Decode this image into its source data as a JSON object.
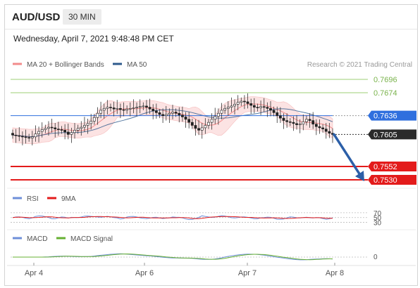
{
  "header": {
    "symbol": "AUD/USD",
    "timeframe": "30 MIN"
  },
  "datetime": "Wednesday, April 7, 2021 9:48:48 PM CET",
  "copyright": "Research © 2021 Trading Central",
  "legend": {
    "price": [
      {
        "label": "MA 20 + Bollinger Bands",
        "color": "#f28b8b"
      },
      {
        "label": "MA 50",
        "color": "#2e5a8c"
      }
    ],
    "rsi": [
      {
        "label": "RSI",
        "color": "#6e8fd9"
      },
      {
        "label": "9MA",
        "color": "#e31b1b"
      }
    ],
    "macd": [
      {
        "label": "MACD",
        "color": "#6e8fd9"
      },
      {
        "label": "MACD Signal",
        "color": "#66b032"
      }
    ]
  },
  "chart_data": {
    "type": "line",
    "title": "AUD/USD",
    "x_tick_labels": [
      "Apr 4",
      "Apr 6",
      "Apr 7",
      "Apr 8"
    ],
    "ylim": [
      0.7518,
      0.771
    ],
    "price_close": [
      0.7604,
      0.7603,
      0.7602,
      0.7601,
      0.76,
      0.7599,
      0.7601,
      0.7606,
      0.761,
      0.7613,
      0.7615,
      0.7617,
      0.7616,
      0.7614,
      0.7613,
      0.7612,
      0.7609,
      0.7605,
      0.7608,
      0.7612,
      0.7615,
      0.7617,
      0.762,
      0.7623,
      0.7627,
      0.7633,
      0.764,
      0.7645,
      0.7648,
      0.765,
      0.7649,
      0.7647,
      0.7648,
      0.7646,
      0.7645,
      0.7647,
      0.7648,
      0.7649,
      0.765,
      0.7651,
      0.7652,
      0.765,
      0.7647,
      0.7644,
      0.7641,
      0.7638,
      0.7636,
      0.7638,
      0.764,
      0.7642,
      0.764,
      0.7637,
      0.7634,
      0.763,
      0.7625,
      0.762,
      0.7615,
      0.7612,
      0.7616,
      0.762,
      0.7625,
      0.763,
      0.7635,
      0.764,
      0.7645,
      0.7648,
      0.765,
      0.7652,
      0.7655,
      0.7658,
      0.766,
      0.7659,
      0.7656,
      0.7653,
      0.765,
      0.7649,
      0.7651,
      0.765,
      0.7648,
      0.7645,
      0.7641,
      0.7636,
      0.7632,
      0.7628,
      0.7626,
      0.7625,
      0.7623,
      0.7621,
      0.7622,
      0.7626,
      0.763,
      0.7628,
      0.7622,
      0.7618,
      0.7616,
      0.7614,
      0.761,
      0.7607,
      0.7605
    ],
    "levels": {
      "resistance": [
        0.7696,
        0.7674
      ],
      "pivot": 0.7636,
      "last": 0.7605,
      "support": [
        0.7552,
        0.753
      ]
    },
    "forecast_arrow": {
      "from": 0.7605,
      "to": 0.753
    },
    "rsi": {
      "levels": [
        70,
        50,
        30
      ]
    },
    "macd": {
      "zero_label": "0"
    }
  }
}
